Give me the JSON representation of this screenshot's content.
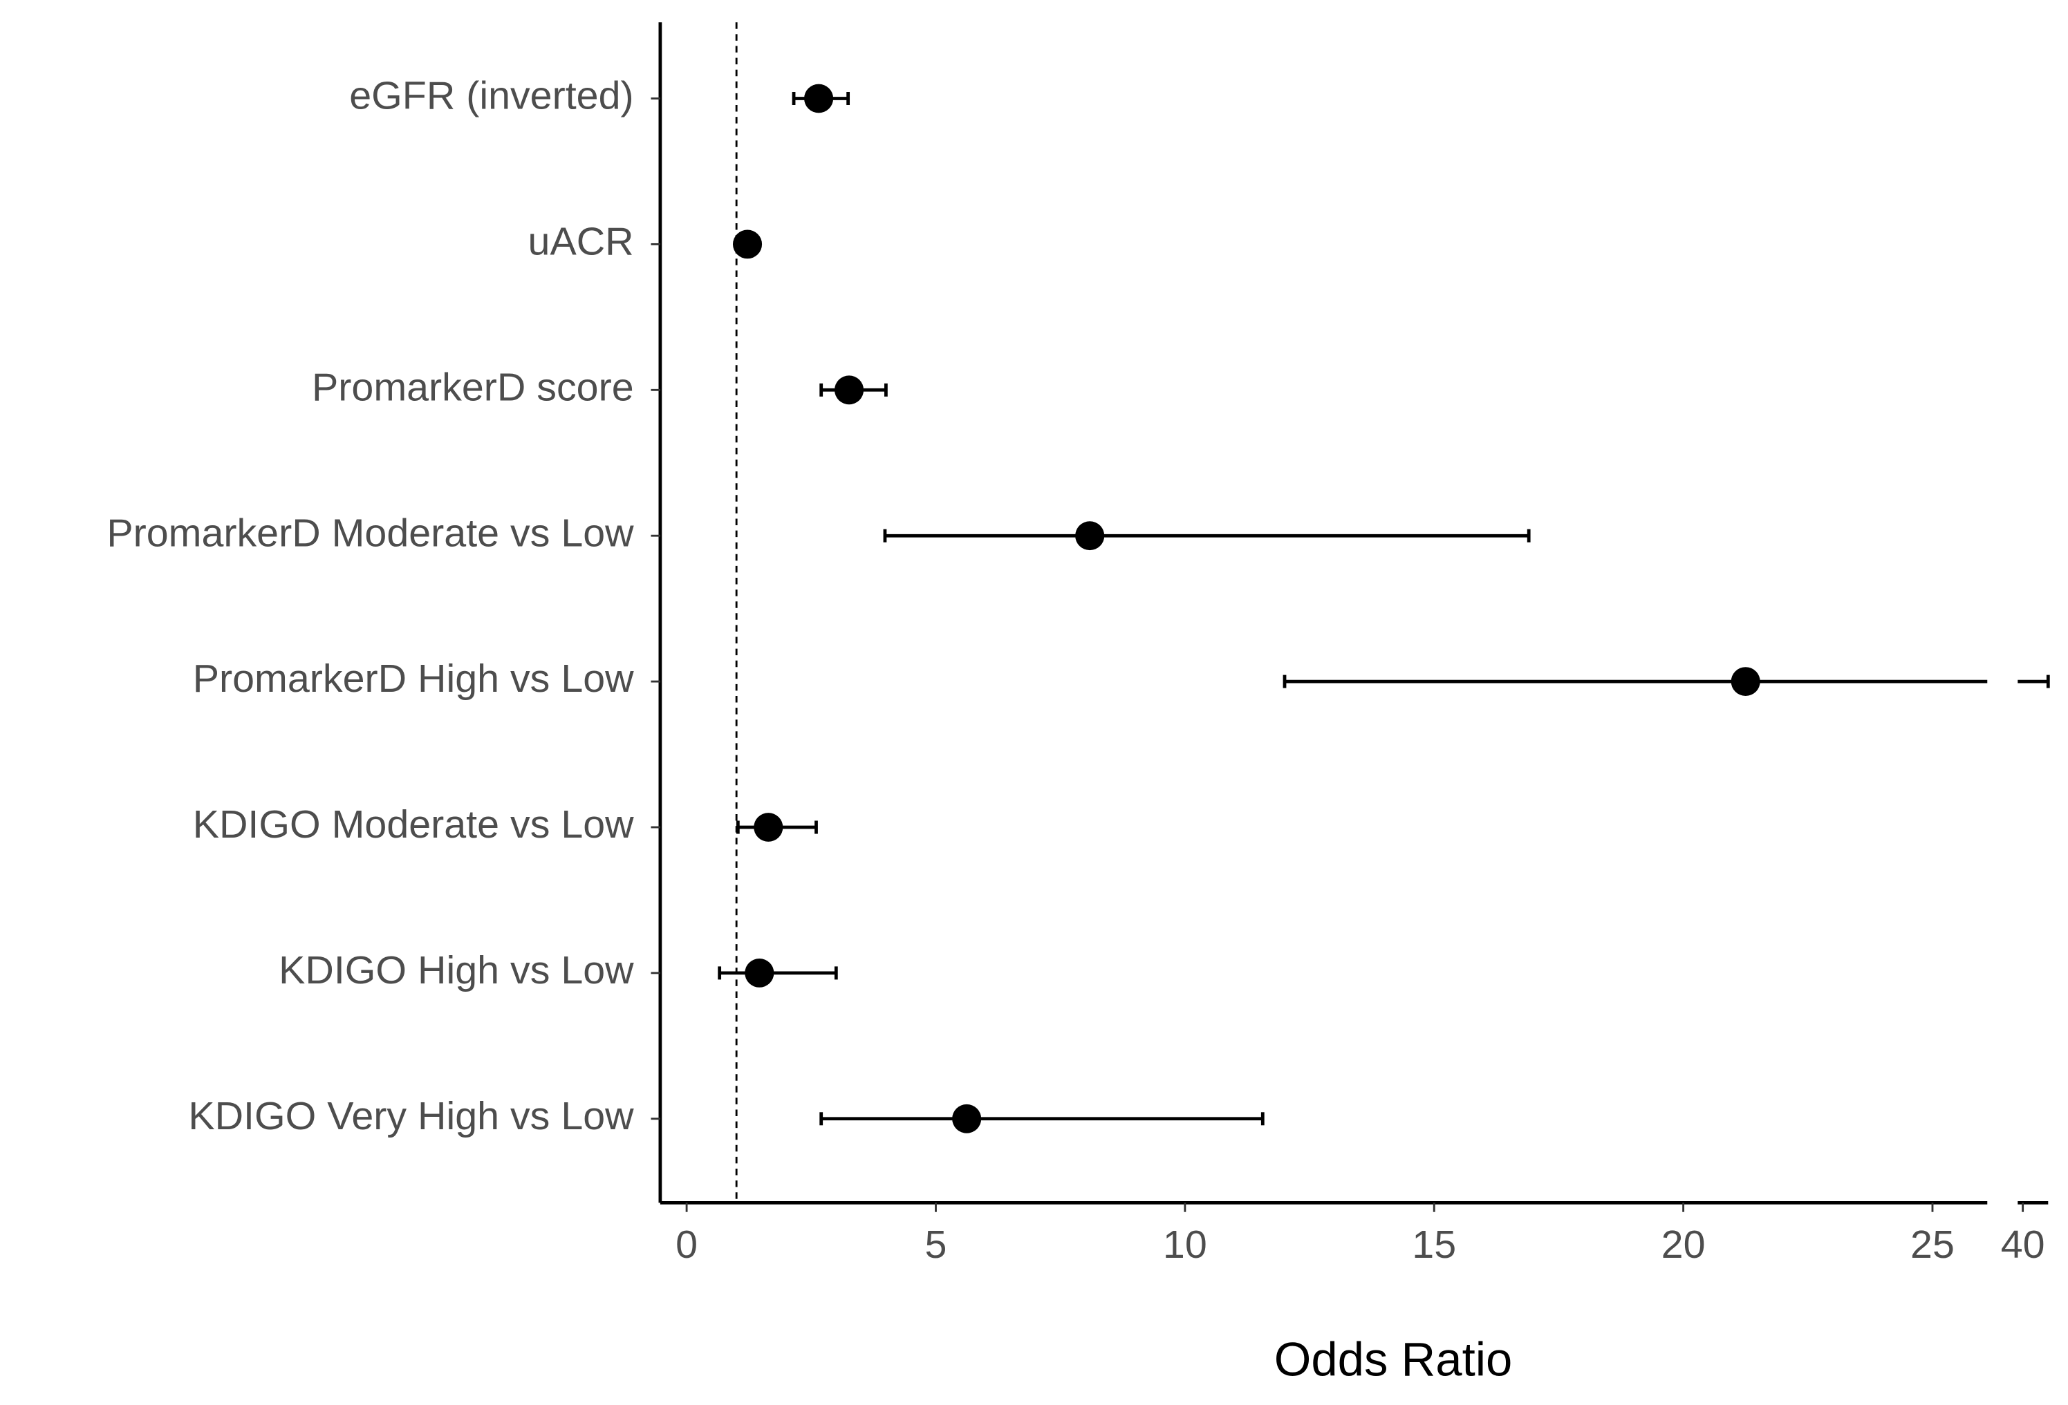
{
  "chart_data": {
    "type": "forest",
    "categories": [
      "eGFR (inverted)",
      "uACR",
      "PromarkerD score",
      "PromarkerD Moderate vs Low",
      "PromarkerD High vs Low",
      "KDIGO Moderate vs Low",
      "KDIGO High vs Low",
      "KDIGO Very High vs Low"
    ],
    "values": [
      2.65,
      1.22,
      3.26,
      8.09,
      21.25,
      1.64,
      1.46,
      5.62
    ],
    "lower": [
      2.15,
      1.15,
      2.7,
      3.98,
      12.0,
      1.03,
      0.66,
      2.7
    ],
    "upper": [
      3.24,
      1.3,
      4.0,
      16.9,
      40.5,
      2.6,
      3.0,
      11.56
    ],
    "color": "#000000",
    "xlabel": "Odds Ratio",
    "xlim": [
      -0.53,
      26.1
    ],
    "xticks": [
      0,
      5,
      10,
      15,
      20,
      25
    ],
    "x2lim": [
      39.9,
      40.5
    ],
    "x2ticks": [
      40
    ],
    "reference_line": 1,
    "grid": false
  }
}
